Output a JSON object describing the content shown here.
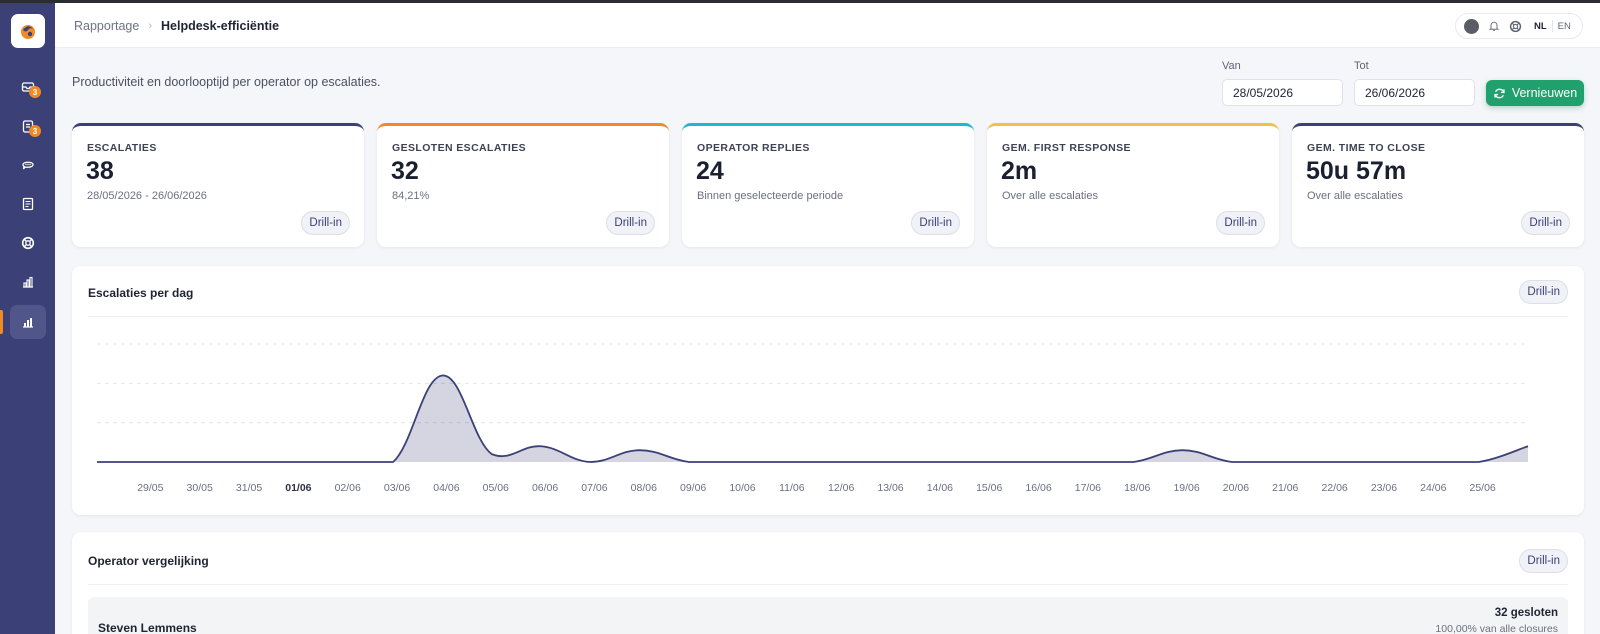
{
  "breadcrumb": {
    "parent": "Rapportage",
    "separator": "›",
    "current": "Helpdesk-efficiëntie"
  },
  "header_tools": {
    "lang_nl": "NL",
    "lang_en": "EN"
  },
  "sidebar": {
    "items": [
      {
        "name": "inbox",
        "badge": "3"
      },
      {
        "name": "clipboard",
        "badge": "3"
      },
      {
        "name": "chat",
        "badge": null
      },
      {
        "name": "notes",
        "badge": null
      },
      {
        "name": "support",
        "badge": null
      },
      {
        "name": "reports",
        "badge": null
      },
      {
        "name": "analytics",
        "badge": null
      }
    ]
  },
  "page": {
    "subtitle": "Productiviteit en doorlooptijd per operator op escalaties."
  },
  "filters": {
    "from_label": "Van",
    "from_value": "28/05/2026",
    "to_label": "Tot",
    "to_value": "26/06/2026",
    "refresh_label": "Vernieuwen"
  },
  "colors": {
    "accent": "#3b4077",
    "green": "#1fa06c",
    "orange": "#f08a24",
    "cyan": "#1fb6d6",
    "yellow": "#f2bf4a"
  },
  "kpis": [
    {
      "label": "ESCALATIES",
      "value": "38",
      "sub": "28/05/2026 - 26/06/2026",
      "color": "#3b4077",
      "drill": "Drill-in"
    },
    {
      "label": "GESLOTEN ESCALATIES",
      "value": "32",
      "sub": "84,21%",
      "color": "#f08a24",
      "drill": "Drill-in"
    },
    {
      "label": "OPERATOR REPLIES",
      "value": "24",
      "sub": "Binnen geselecteerde periode",
      "color": "#1fb6d6",
      "drill": "Drill-in"
    },
    {
      "label": "GEM. FIRST RESPONSE",
      "value": "2m",
      "sub": "Over alle escalaties",
      "color": "#f2bf4a",
      "drill": "Drill-in"
    },
    {
      "label": "GEM. TIME TO CLOSE",
      "value": "50u 57m",
      "sub": "Over alle escalaties",
      "color": "#3b4077",
      "drill": "Drill-in"
    }
  ],
  "chart_panel": {
    "title": "Escalaties per dag",
    "drill": "Drill-in"
  },
  "chart_data": {
    "type": "area",
    "title": "Escalaties per dag",
    "x": [
      "28/05",
      "29/05",
      "30/05",
      "31/05",
      "01/06",
      "02/06",
      "03/06",
      "04/06",
      "05/06",
      "06/06",
      "07/06",
      "08/06",
      "09/06",
      "10/06",
      "11/06",
      "12/06",
      "13/06",
      "14/06",
      "15/06",
      "16/06",
      "17/06",
      "18/06",
      "19/06",
      "20/06",
      "21/06",
      "22/06",
      "23/06",
      "24/06",
      "25/06",
      "26/06"
    ],
    "tick_labels": [
      "29/05",
      "30/05",
      "31/05",
      "01/06",
      "02/06",
      "03/06",
      "04/06",
      "05/06",
      "06/06",
      "07/06",
      "08/06",
      "09/06",
      "10/06",
      "11/06",
      "12/06",
      "13/06",
      "14/06",
      "15/06",
      "16/06",
      "17/06",
      "18/06",
      "19/06",
      "20/06",
      "21/06",
      "22/06",
      "23/06",
      "24/06",
      "25/06"
    ],
    "bold_tick": "01/06",
    "series": [
      {
        "values": [
          0,
          0,
          0,
          0,
          0,
          0,
          0,
          22,
          2,
          4,
          0,
          3,
          0,
          0,
          0,
          0,
          0,
          0,
          0,
          0,
          0,
          0,
          3,
          0,
          0,
          0,
          0,
          0,
          0,
          4
        ]
      }
    ],
    "ylim": [
      0,
      30
    ],
    "grid": true,
    "color": "#3b4077"
  },
  "operators_panel": {
    "title": "Operator vergelijking",
    "drill": "Drill-in",
    "rows": [
      {
        "name": "Steven Lemmens",
        "closed": "32 gesloten",
        "share": "100,00% van alle closures"
      }
    ]
  }
}
